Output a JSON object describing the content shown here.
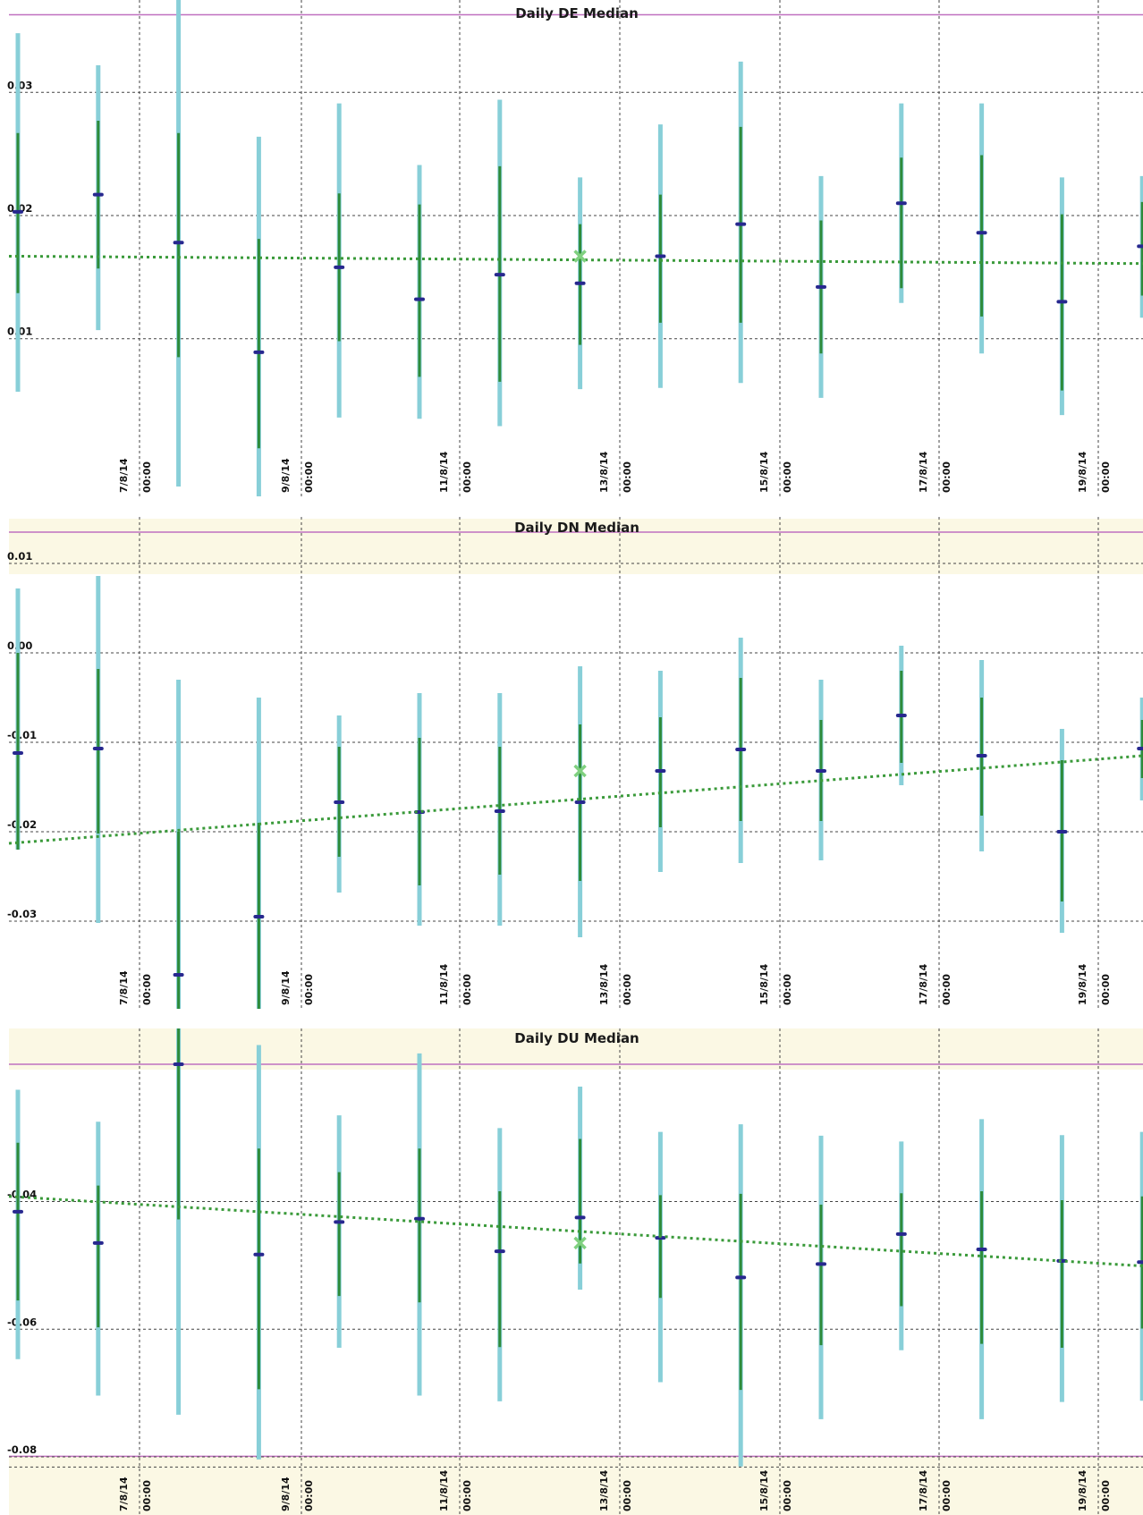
{
  "colors": {
    "band": "#fbf8e4",
    "limit_line": "#c070c0",
    "grid": "#444444",
    "whisker_outer": "#88cfd8",
    "whisker_inner": "#2e8b3a",
    "median_marker": "#27288f",
    "trend": "#3a9a3a",
    "highlight": "#7fd07f"
  },
  "shared_x": {
    "tick_labels": [
      [
        "7/8/14",
        "00:00"
      ],
      [
        "9/8/14",
        "00:00"
      ],
      [
        "11/8/14",
        "00:00"
      ],
      [
        "13/8/14",
        "00:00"
      ],
      [
        "15/8/14",
        "00:00"
      ],
      [
        "17/8/14",
        "00:00"
      ],
      [
        "19/8/14",
        "00:00"
      ]
    ]
  },
  "chart_data": [
    {
      "type": "box",
      "title": "Daily DE Median",
      "ytick_labels": [
        "0.03",
        "0.02",
        "0.01"
      ],
      "ytick_values": [
        0.03,
        0.02,
        0.01
      ],
      "ylim": [
        -0.0028,
        0.0375
      ],
      "has_top_band": false,
      "upper_limit": 0.0363,
      "lower_limit": null,
      "day_index": [
        0,
        1,
        2,
        3,
        4,
        5,
        6,
        7,
        8,
        9,
        10,
        11,
        12,
        13,
        14
      ],
      "outer_high": [
        0.0348,
        0.0322,
        0.038,
        0.0264,
        0.0291,
        0.0241,
        0.0294,
        0.0231,
        0.0274,
        0.0325,
        0.0232,
        0.0291,
        0.0291,
        0.0231,
        0.0232
      ],
      "inner_high": [
        0.0267,
        0.0277,
        0.0267,
        0.0181,
        0.0218,
        0.0209,
        0.024,
        0.0193,
        0.0217,
        0.0272,
        0.0196,
        0.0247,
        0.0249,
        0.0201,
        0.0211
      ],
      "median": [
        0.0203,
        0.0217,
        0.0178,
        0.0089,
        0.0158,
        0.0132,
        0.0152,
        0.0145,
        0.0167,
        0.0193,
        0.0142,
        0.021,
        0.0186,
        0.013,
        0.0175
      ],
      "inner_low": [
        0.0137,
        0.0157,
        0.0085,
        0.0011,
        0.0098,
        0.0069,
        0.0065,
        0.0095,
        0.0113,
        0.0113,
        0.0088,
        0.0141,
        0.0118,
        0.0058,
        0.0135
      ],
      "outer_low": [
        0.0057,
        0.0107,
        -0.002,
        -0.0028,
        0.0036,
        0.0035,
        0.0029,
        0.0059,
        0.006,
        0.0064,
        0.0052,
        0.0129,
        0.0088,
        0.0038,
        0.0117
      ],
      "trend": [
        0.0167,
        0.0161
      ],
      "highlight": {
        "index": 7,
        "value": 0.0167
      }
    },
    {
      "type": "box",
      "title": "Daily DN Median",
      "ytick_labels": [
        "0.01",
        "0.00",
        "-0.01",
        "-0.02",
        "-0.03"
      ],
      "ytick_values": [
        0.01,
        0.0,
        -0.01,
        -0.02,
        -0.03
      ],
      "ylim": [
        -0.0398,
        0.0152
      ],
      "has_top_band": true,
      "upper_limit": 0.0135,
      "lower_limit": null,
      "day_index": [
        0,
        1,
        2,
        3,
        4,
        5,
        6,
        7,
        8,
        9,
        10,
        11,
        12,
        13,
        14
      ],
      "outer_high": [
        0.0072,
        0.0086,
        -0.003,
        -0.005,
        -0.007,
        -0.0045,
        -0.0045,
        -0.0015,
        -0.002,
        0.0017,
        -0.003,
        0.0008,
        -0.0008,
        -0.0085,
        -0.005
      ],
      "inner_high": [
        0.0,
        -0.0018,
        -0.02,
        -0.019,
        -0.0105,
        -0.0095,
        -0.0105,
        -0.008,
        -0.0072,
        -0.0028,
        -0.0075,
        -0.002,
        -0.005,
        -0.012,
        -0.0075
      ],
      "median": [
        -0.0112,
        -0.0107,
        -0.036,
        -0.0295,
        -0.0167,
        -0.0178,
        -0.0177,
        -0.0167,
        -0.0132,
        -0.0108,
        -0.0132,
        -0.007,
        -0.0115,
        -0.02,
        -0.0107
      ],
      "inner_low": [
        -0.022,
        -0.0202,
        -0.0398,
        -0.0398,
        -0.0228,
        -0.026,
        -0.0248,
        -0.0255,
        -0.0195,
        -0.0188,
        -0.0188,
        -0.0123,
        -0.0182,
        -0.0278,
        -0.014
      ],
      "outer_low": [
        -0.022,
        -0.0302,
        -0.0398,
        -0.0398,
        -0.0268,
        -0.0305,
        -0.0305,
        -0.0318,
        -0.0245,
        -0.0235,
        -0.0232,
        -0.0148,
        -0.0222,
        -0.0313,
        -0.0165
      ],
      "trend": [
        -0.0213,
        -0.0115
      ],
      "highlight": {
        "index": 7,
        "value": -0.0132
      }
    },
    {
      "type": "box",
      "title": "Daily DU Median",
      "ytick_labels": [
        "-0.04",
        "-0.06",
        "-0.08"
      ],
      "ytick_values": [
        -0.04,
        -0.06,
        -0.08
      ],
      "ylim": [
        -0.0891,
        -0.0129
      ],
      "has_top_band": true,
      "upper_limit": -0.0185,
      "lower_limit": -0.0799,
      "day_index": [
        0,
        1,
        2,
        3,
        4,
        5,
        6,
        7,
        8,
        9,
        10,
        11,
        12,
        13,
        14
      ],
      "outer_high": [
        -0.0225,
        -0.0275,
        -0.0115,
        -0.0155,
        -0.0265,
        -0.0168,
        -0.0285,
        -0.022,
        -0.0291,
        -0.0279,
        -0.0297,
        -0.0306,
        -0.0271,
        -0.0296,
        -0.0291
      ],
      "inner_high": [
        -0.0308,
        -0.0375,
        -0.0115,
        -0.0317,
        -0.0354,
        -0.0317,
        -0.0384,
        -0.0302,
        -0.039,
        -0.0388,
        -0.0405,
        -0.0387,
        -0.0384,
        -0.0398,
        -0.0392
      ],
      "median": [
        -0.0416,
        -0.0465,
        -0.0185,
        -0.0483,
        -0.0432,
        -0.0427,
        -0.0478,
        -0.0425,
        -0.0457,
        -0.0519,
        -0.0498,
        -0.0451,
        -0.0475,
        -0.0493,
        -0.0495
      ],
      "inner_low": [
        -0.0555,
        -0.0597,
        -0.0428,
        -0.0694,
        -0.0548,
        -0.0558,
        -0.0628,
        -0.0497,
        -0.0551,
        -0.0695,
        -0.0625,
        -0.0564,
        -0.0623,
        -0.0629,
        -0.0599
      ],
      "outer_low": [
        -0.0647,
        -0.0704,
        -0.0734,
        -0.0804,
        -0.0629,
        -0.0704,
        -0.0713,
        -0.0538,
        -0.0683,
        -0.0815,
        -0.0741,
        -0.0633,
        -0.0741,
        -0.0714,
        -0.0712
      ],
      "trend": [
        -0.0392,
        -0.0501
      ],
      "highlight": {
        "index": 7,
        "value": -0.0465
      }
    }
  ]
}
